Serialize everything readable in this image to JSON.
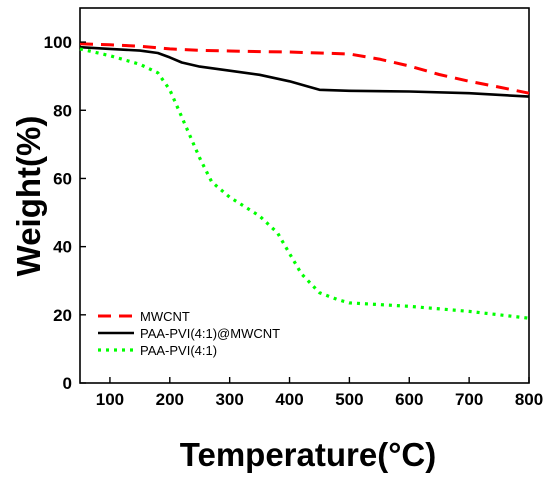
{
  "chart_data": {
    "type": "line",
    "xlabel": "Temperature(°C)",
    "ylabel": "Weight(%)",
    "xlim": [
      50,
      800
    ],
    "ylim": [
      0,
      110
    ],
    "xticks": [
      100,
      200,
      300,
      400,
      500,
      600,
      700,
      800
    ],
    "yticks": [
      0,
      20,
      40,
      60,
      80,
      100
    ],
    "legend_position": "bottom-left",
    "grid": false,
    "series": [
      {
        "name": "MWCNT",
        "color": "#ff0000",
        "style": "dashed",
        "x": [
          50,
          100,
          150,
          200,
          250,
          300,
          350,
          400,
          450,
          500,
          550,
          600,
          650,
          700,
          750,
          800
        ],
        "y": [
          99.5,
          99.2,
          98.8,
          98.0,
          97.6,
          97.4,
          97.2,
          97.1,
          96.8,
          96.5,
          95.0,
          93.0,
          90.5,
          88.5,
          86.8,
          85.0
        ]
      },
      {
        "name": "PAA-PVI(4:1)@MWCNT",
        "color": "#000000",
        "style": "solid",
        "x": [
          50,
          100,
          150,
          180,
          200,
          220,
          250,
          300,
          350,
          400,
          430,
          450,
          500,
          600,
          700,
          800
        ],
        "y": [
          98.5,
          98.0,
          97.5,
          96.8,
          95.5,
          94.0,
          92.8,
          91.6,
          90.4,
          88.5,
          87.0,
          86.0,
          85.7,
          85.5,
          85.0,
          84.0
        ]
      },
      {
        "name": "PAA-PVI(4:1)",
        "color": "#00ff00",
        "style": "dotted",
        "x": [
          50,
          100,
          150,
          180,
          200,
          220,
          250,
          270,
          300,
          350,
          380,
          400,
          420,
          450,
          480,
          500,
          600,
          700,
          800
        ],
        "y": [
          98.0,
          96.0,
          93.5,
          91.0,
          86.0,
          78.0,
          66.0,
          59.0,
          54.5,
          49.0,
          44.0,
          38.0,
          32.0,
          26.5,
          24.5,
          23.5,
          22.5,
          21.0,
          19.0
        ]
      }
    ]
  }
}
